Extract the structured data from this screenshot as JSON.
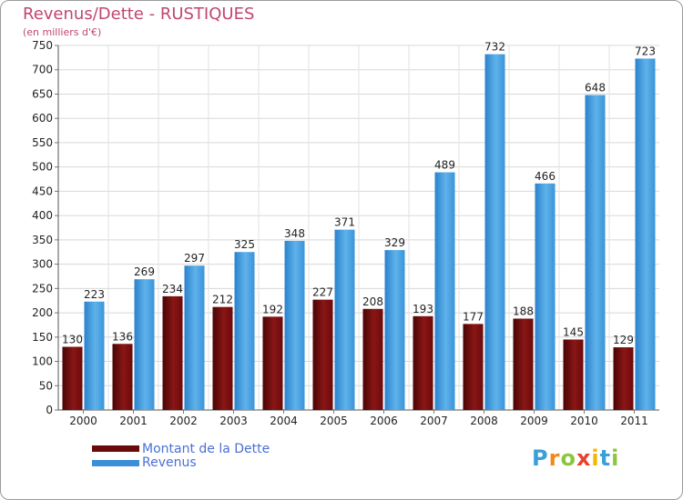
{
  "header": {
    "title": "Revenus/Dette - RUSTIQUES",
    "subtitle": "(en milliers d'€)"
  },
  "legend": {
    "debt_label": "Montant de la Dette",
    "revenue_label": "Revenus"
  },
  "logo": {
    "text": "Proxiti",
    "letters": [
      "P",
      "r",
      "o",
      "x",
      "i",
      "t",
      "i"
    ],
    "letter_colors": [
      "#3aa0d8",
      "#f08a1c",
      "#8cc63f",
      "#e8412c",
      "#f2b705",
      "#3aa0d8",
      "#8cc63f"
    ]
  },
  "colors": {
    "debt": "#6b0a0a",
    "debt_light": "#b23a3a",
    "revenue": "#3a8fd6",
    "revenue_light": "#62b4ec",
    "title": "#c0466e",
    "legend_text": "#4a6fd8"
  },
  "chart_data": {
    "type": "bar",
    "title": "Revenus/Dette - RUSTIQUES",
    "ylabel": "(en milliers d'€)",
    "xlabel": "",
    "ylim": [
      0,
      750
    ],
    "yticks": [
      0,
      50,
      100,
      150,
      200,
      250,
      300,
      350,
      400,
      450,
      500,
      550,
      600,
      650,
      700,
      750
    ],
    "grid": true,
    "categories": [
      "2000",
      "2001",
      "2002",
      "2003",
      "2004",
      "2005",
      "2006",
      "2007",
      "2008",
      "2009",
      "2010",
      "2011"
    ],
    "series": [
      {
        "name": "Montant de la Dette",
        "values": [
          130,
          136,
          234,
          212,
          192,
          227,
          208,
          193,
          177,
          188,
          145,
          129
        ]
      },
      {
        "name": "Revenus",
        "values": [
          223,
          269,
          297,
          325,
          348,
          371,
          329,
          489,
          732,
          466,
          648,
          723
        ]
      }
    ]
  }
}
